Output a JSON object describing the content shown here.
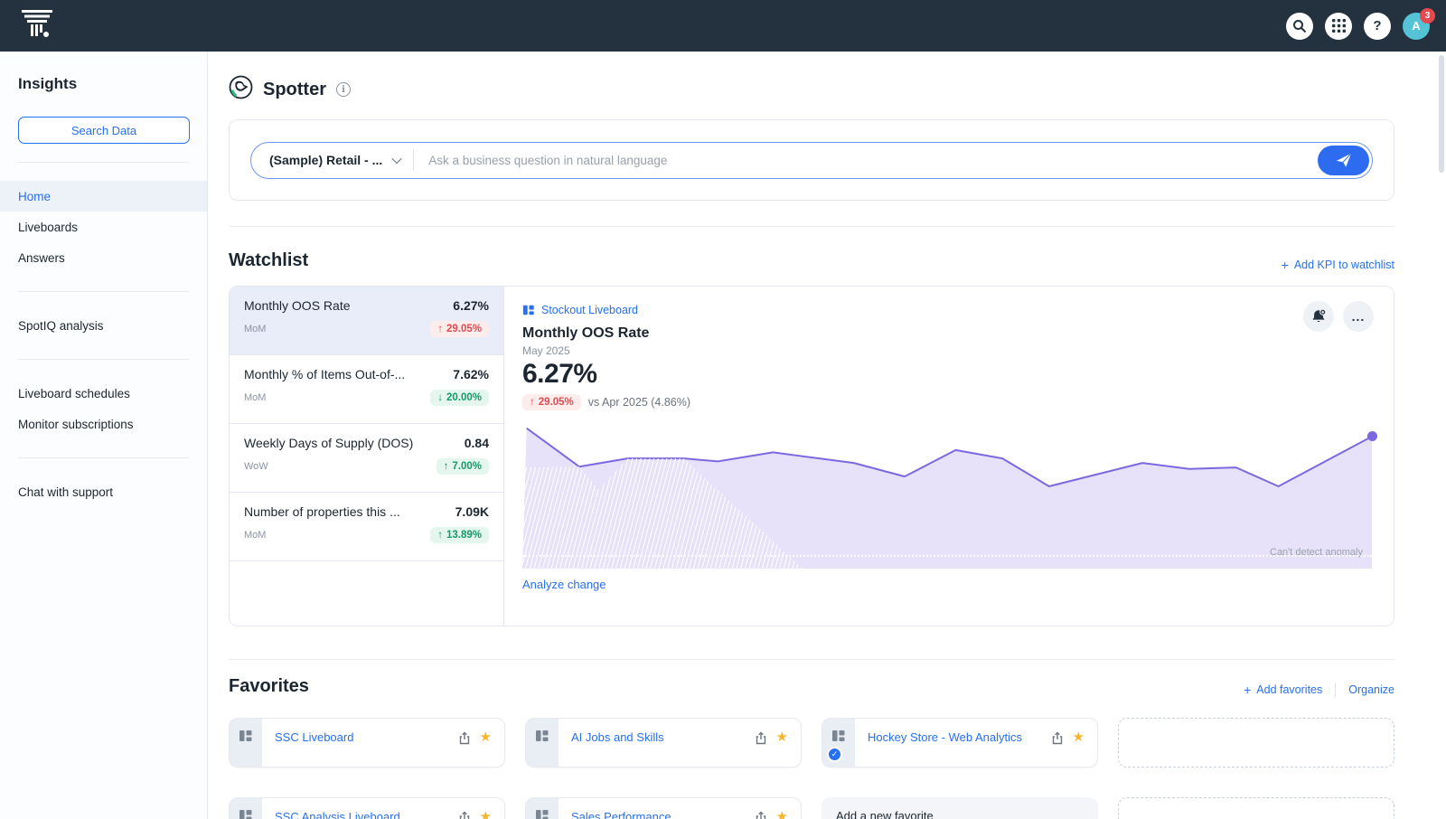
{
  "topbar": {
    "avatar_initial": "A",
    "notification_count": "3"
  },
  "icons": {
    "help": "?",
    "more": "...",
    "star": "★",
    "check": "✓",
    "plus": "+"
  },
  "sidebar": {
    "title": "Insights",
    "search_button": "Search Data",
    "nav": [
      {
        "label": "Home"
      },
      {
        "label": "Liveboards"
      },
      {
        "label": "Answers"
      }
    ],
    "spotiq": "SpotIQ analysis",
    "schedules": "Liveboard schedules",
    "monitor": "Monitor subscriptions",
    "chat": "Chat with support"
  },
  "spotter": {
    "title": "Spotter",
    "datasource": "(Sample) Retail - ...",
    "placeholder": "Ask a business question in natural language"
  },
  "watchlist": {
    "title": "Watchlist",
    "add_link": "Add KPI to watchlist",
    "kpis": [
      {
        "title": "Monthly OOS Rate",
        "value": "6.27%",
        "period": "MoM",
        "arrow": "↑",
        "change": "29.05%"
      },
      {
        "title": "Monthly % of Items Out-of-...",
        "value": "7.62%",
        "period": "MoM",
        "arrow": "↓",
        "change": "20.00%"
      },
      {
        "title": "Weekly Days of Supply (DOS)",
        "value": "0.84",
        "period": "WoW",
        "arrow": "↑",
        "change": "7.00%"
      },
      {
        "title": "Number of properties this ...",
        "value": "7.09K",
        "period": "MoM",
        "arrow": "↑",
        "change": "13.89%"
      }
    ]
  },
  "panel": {
    "liveboard_link": "Stockout Liveboard",
    "title": "Monthly OOS Rate",
    "period": "May 2025",
    "value": "6.27%",
    "arrow": "↑",
    "change": "29.05%",
    "compare": "vs Apr 2025 (4.86%)",
    "anomaly_note": "Can't detect anomaly",
    "analyze_link": "Analyze change"
  },
  "chart_data": {
    "type": "area",
    "title": "Monthly OOS Rate",
    "unit": "%",
    "latest": {
      "period": "May 2025",
      "value": 6.27
    },
    "previous": {
      "period": "Apr 2025",
      "value": 4.86
    },
    "values": [
      6.5,
      5.42,
      5.65,
      5.65,
      5.58,
      5.83,
      5.53,
      5.14,
      5.89,
      5.65,
      4.86,
      5.53,
      5.35,
      5.4,
      4.86,
      6.27
    ],
    "points_norm": [
      [
        0.5,
        7
      ],
      [
        6.7,
        32.5
      ],
      [
        12.4,
        27
      ],
      [
        19,
        27
      ],
      [
        23,
        29
      ],
      [
        29.5,
        23
      ],
      [
        39,
        30
      ],
      [
        45,
        39
      ],
      [
        51,
        21.5
      ],
      [
        56.5,
        27
      ],
      [
        62,
        45.5
      ],
      [
        73,
        30
      ],
      [
        78.5,
        34
      ],
      [
        84,
        33
      ],
      [
        89,
        45.5
      ],
      [
        100,
        12.5
      ]
    ],
    "hatch_region_norm": [
      [
        0,
        100
      ],
      [
        0,
        33
      ],
      [
        6.7,
        32.5
      ],
      [
        9,
        47.5
      ],
      [
        12.4,
        27
      ],
      [
        19,
        27
      ],
      [
        33,
        100
      ]
    ],
    "threshold_y_norm": 91,
    "line_color": "#7d68e0",
    "fill_color": "#e7e2f9",
    "grid": false,
    "axis_labels_visible": false,
    "annotations": [
      "Can't detect anomaly"
    ]
  },
  "favorites": {
    "title": "Favorites",
    "add_link": "Add favorites",
    "organize_link": "Organize",
    "add_new_label": "Add a new favorite",
    "items": [
      {
        "label": "SSC Liveboard"
      },
      {
        "label": "AI Jobs and Skills"
      },
      {
        "label": "Hockey Store - Web Analytics",
        "verified": true
      },
      {
        "label": "SSC Analysis Liveboard"
      },
      {
        "label": "Sales Performance"
      }
    ]
  }
}
